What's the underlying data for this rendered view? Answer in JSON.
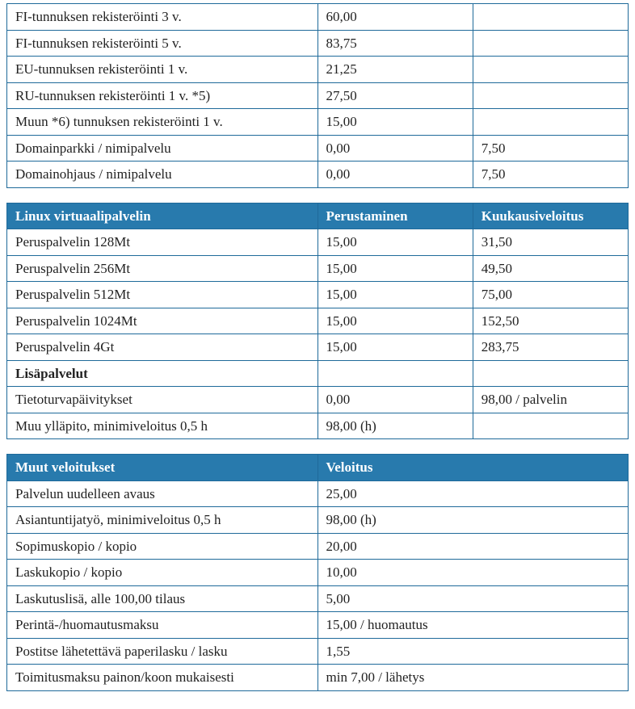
{
  "colors": {
    "header_bg": "#287aad",
    "header_text": "#ffffff",
    "border": "#1f6a9a",
    "text": "#222222",
    "page_bg": "#ffffff"
  },
  "typography": {
    "font_family": "Georgia, 'Times New Roman', serif",
    "font_size": 17,
    "line_height": 1.5
  },
  "table1": {
    "type": "table",
    "columns_pct": [
      50,
      25,
      25
    ],
    "rows": [
      {
        "c1": "FI-tunnuksen rekisteröinti 3 v.",
        "c2": "60,00",
        "c3": ""
      },
      {
        "c1": "FI-tunnuksen rekisteröinti 5 v.",
        "c2": "83,75",
        "c3": ""
      },
      {
        "c1": "EU-tunnuksen rekisteröinti 1 v.",
        "c2": "21,25",
        "c3": ""
      },
      {
        "c1": "RU-tunnuksen rekisteröinti 1 v. *5)",
        "c2": "27,50",
        "c3": ""
      },
      {
        "c1": "Muun *6) tunnuksen rekisteröinti 1 v.",
        "c2": "15,00",
        "c3": ""
      },
      {
        "c1": "Domainparkki / nimipalvelu",
        "c2": "0,00",
        "c3": "7,50"
      },
      {
        "c1": "Domainohjaus / nimipalvelu",
        "c2": "0,00",
        "c3": "7,50"
      }
    ]
  },
  "table2": {
    "type": "table",
    "columns_pct": [
      50,
      25,
      25
    ],
    "header": {
      "h1": "Linux virtuaalipalvelin",
      "h2": "Perustaminen",
      "h3": "Kuukausiveloitus"
    },
    "rows": [
      {
        "c1": "Peruspalvelin 128Mt",
        "c2": "15,00",
        "c3": "31,50"
      },
      {
        "c1": "Peruspalvelin 256Mt",
        "c2": "15,00",
        "c3": "49,50"
      },
      {
        "c1": "Peruspalvelin 512Mt",
        "c2": "15,00",
        "c3": "75,00"
      },
      {
        "c1": "Peruspalvelin 1024Mt",
        "c2": "15,00",
        "c3": "152,50"
      },
      {
        "c1": "Peruspalvelin 4Gt",
        "c2": "15,00",
        "c3": "283,75"
      },
      {
        "c1": "Lisäpalvelut",
        "c2": "",
        "c3": "",
        "bold": true
      },
      {
        "c1": "Tietoturvapäivitykset",
        "c2": "0,00",
        "c3": "98,00 / palvelin"
      },
      {
        "c1": "Muu ylläpito, minimiveloitus 0,5 h",
        "c2": "98,00 (h)",
        "c3": ""
      }
    ]
  },
  "table3": {
    "type": "table",
    "columns_pct": [
      50,
      50
    ],
    "header": {
      "h1": "Muut veloitukset",
      "h2": "Veloitus"
    },
    "rows": [
      {
        "c1": "Palvelun uudelleen avaus",
        "c2": "25,00"
      },
      {
        "c1": "Asiantuntijatyö, minimiveloitus 0,5 h",
        "c2": "98,00 (h)"
      },
      {
        "c1": "Sopimuskopio / kopio",
        "c2": "20,00"
      },
      {
        "c1": "Laskukopio / kopio",
        "c2": "10,00"
      },
      {
        "c1": "Laskutuslisä, alle 100,00 tilaus",
        "c2": "5,00"
      },
      {
        "c1": "Perintä-/huomautusmaksu",
        "c2": "15,00 / huomautus"
      },
      {
        "c1": "Postitse lähetettävä paperilasku / lasku",
        "c2": "1,55"
      },
      {
        "c1": "Toimitusmaksu painon/koon mukaisesti",
        "c2": "min 7,00 / lähetys"
      }
    ]
  }
}
